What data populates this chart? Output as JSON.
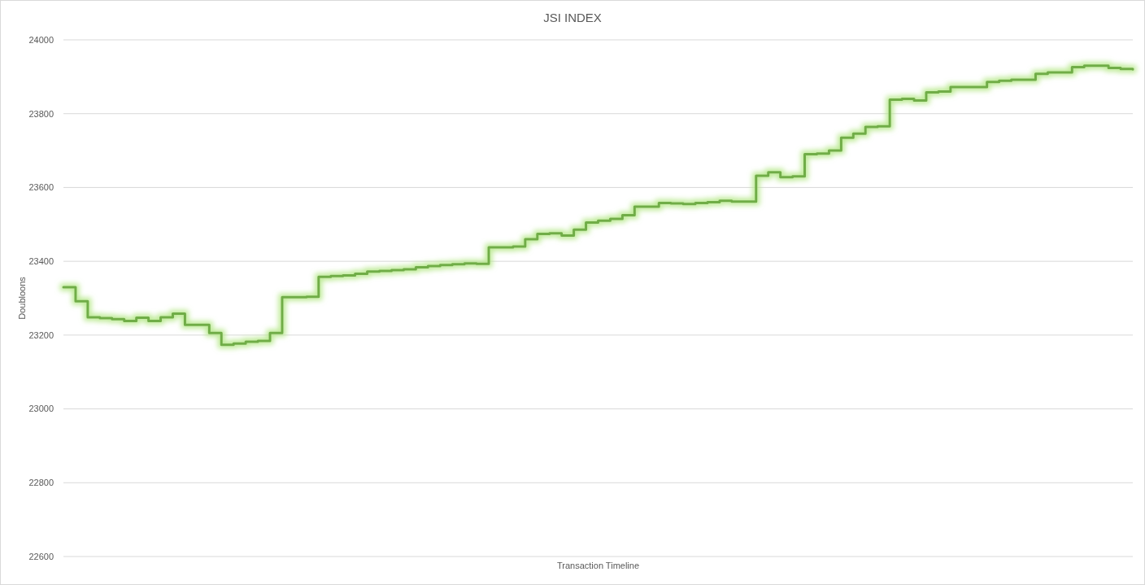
{
  "chart_data": {
    "type": "step",
    "title": "JSI INDEX",
    "xlabel": "Transaction Timeline",
    "ylabel": "Doubloons",
    "categories": [
      null,
      null,
      null,
      null,
      null,
      null,
      null,
      null,
      null,
      null,
      null,
      null,
      null,
      null,
      null,
      null,
      null,
      null,
      null,
      null,
      null,
      null,
      null,
      null,
      null,
      null,
      null,
      null,
      null,
      null,
      null,
      null,
      null,
      null,
      null,
      null,
      null,
      null,
      null,
      null,
      null,
      null,
      null,
      null,
      null,
      null,
      null,
      null,
      null,
      null,
      null,
      null,
      null,
      null,
      null,
      null,
      null,
      null,
      null,
      null,
      null,
      null,
      null,
      null,
      null,
      null,
      null,
      null,
      null,
      null,
      null,
      null,
      null,
      null,
      null,
      null,
      null,
      null,
      null,
      null,
      null,
      null,
      null,
      null,
      null,
      null,
      null,
      null,
      null
    ],
    "series": [
      {
        "color": "#70ad47",
        "values": [
          23330,
          23292,
          23248,
          23246,
          23243,
          23238,
          23247,
          23238,
          23248,
          23258,
          23228,
          23228,
          23206,
          23174,
          23177,
          23182,
          23184,
          23206,
          23303,
          23303,
          23304,
          23358,
          23360,
          23362,
          23366,
          23372,
          23374,
          23376,
          23378,
          23384,
          23387,
          23390,
          23392,
          23394,
          23393,
          23438,
          23438,
          23440,
          23460,
          23474,
          23476,
          23470,
          23486,
          23505,
          23510,
          23515,
          23525,
          23548,
          23548,
          23558,
          23557,
          23555,
          23558,
          23560,
          23564,
          23562,
          23562,
          23632,
          23641,
          23628,
          23630,
          23690,
          23692,
          23700,
          23735,
          23746,
          23764,
          23766,
          23838,
          23840,
          23836,
          23858,
          23860,
          23872,
          23872,
          23872,
          23886,
          23889,
          23892,
          23892,
          23908,
          23912,
          23912,
          23926,
          23930,
          23930,
          23924,
          23921,
          23920
        ]
      }
    ],
    "ylim": [
      22600,
      24000
    ],
    "yticks": [
      22600,
      22800,
      23000,
      23200,
      23400,
      23600,
      23800,
      24000
    ],
    "grid": "y",
    "tick_labels": "y"
  }
}
